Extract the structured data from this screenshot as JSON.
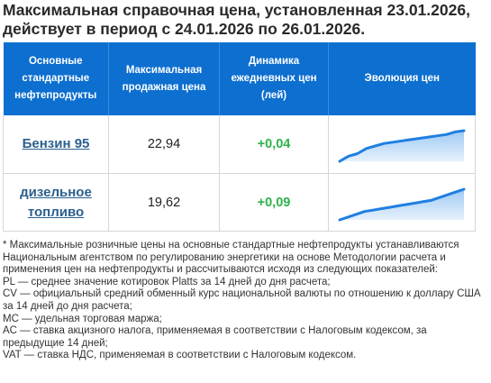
{
  "title": "Максимальная справочная цена, установленная 23.01.2026, действует в период с 24.01.2026 по 26.01.2026.",
  "table": {
    "headers": [
      "Основные стандартные нефтепродукты",
      "Максимальная продажная цена",
      "Динамика ежедневных цен (лей)",
      "Эволюция цен"
    ],
    "rows": [
      {
        "product": "Бензин 95",
        "price": "22,94",
        "change": "+0,04"
      },
      {
        "product": "дизельное топливо",
        "price": "19,62",
        "change": "+0,09"
      }
    ]
  },
  "chart_data": [
    {
      "type": "area",
      "series": [
        {
          "values": [
            0,
            2,
            3,
            5,
            6,
            7,
            7.5,
            8,
            8.5,
            9,
            9.5,
            10,
            10.5,
            11.5,
            12
          ]
        }
      ],
      "color": "#1f7fe0"
    },
    {
      "type": "area",
      "series": [
        {
          "values": [
            0,
            1,
            2,
            3,
            3.5,
            4,
            4.5,
            5,
            5.5,
            6,
            6.5,
            7,
            8,
            9,
            10,
            11
          ]
        }
      ],
      "color": "#1f7fe0"
    }
  ],
  "notes": [
    "* Максимальные розничные цены на основные стандартные нефтепродукты устанавливаются Национальным агентством по регулированию энергетики на основе Методологии расчета и применения цен на нефтепродукты и рассчитываются исходя из следующих показателей:",
    "PL — среднее значение котировок Platts за 14 дней до дня расчета;",
    "CV — официальный средний обменный курс национальной валюты по отношению к доллару США за 14 дней до дня расчета;",
    "MC — удельная торговая маржа;",
    "AC — ставка акцизного налога, применяемая в соответствии с Налоговым кодексом, за предыдущие 14 дней;",
    "VAT — ставка НДС, применяемая в соответствии с Налоговым кодексом."
  ]
}
